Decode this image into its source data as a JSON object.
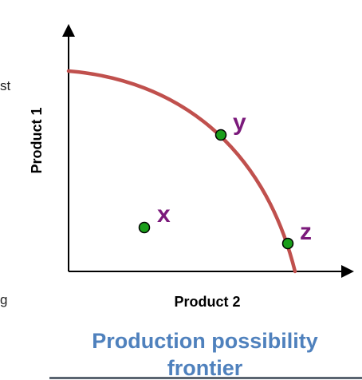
{
  "diagram": {
    "x_axis_label": "Product 2",
    "y_axis_label": "Product 1",
    "curve_color": "#c0504d",
    "point_fill_color": "#1a9e1a",
    "point_label_color": "#7b1a7b",
    "points": [
      {
        "label": "x",
        "position": "inside-frontier"
      },
      {
        "label": "y",
        "position": "on-frontier"
      },
      {
        "label": "z",
        "position": "on-frontier"
      }
    ]
  },
  "caption": {
    "line1": "Production possibility",
    "line2": "frontier",
    "color": "#4f81bd"
  },
  "edge_fragments": [
    "st",
    "g"
  ]
}
